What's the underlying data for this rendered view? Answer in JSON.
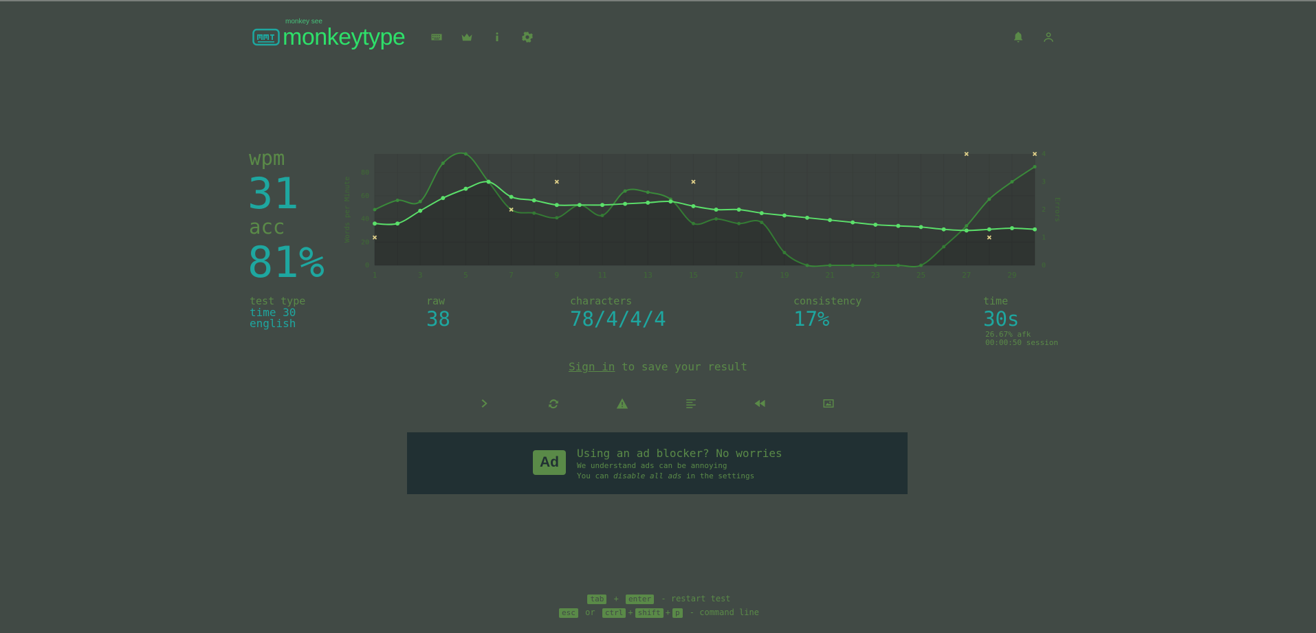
{
  "logo": {
    "sub": "monkey see",
    "title": "monkeytype"
  },
  "nav": {
    "icons": [
      "keyboard-icon",
      "crown-icon",
      "info-icon",
      "gear-icon"
    ],
    "right_icons": [
      "bell-icon",
      "user-icon"
    ]
  },
  "result": {
    "wpm_label": "wpm",
    "wpm_value": "31",
    "acc_label": "acc",
    "acc_value": "81%",
    "test_type_label": "test type",
    "test_type_line1": "time 30",
    "test_type_line2": "english",
    "raw_label": "raw",
    "raw_value": "38",
    "characters_label": "characters",
    "characters_value": "78/4/4/4",
    "consistency_label": "consistency",
    "consistency_value": "17%",
    "time_label": "time",
    "time_value": "30s",
    "afk": "26.67% afk",
    "session": "00:00:50 session"
  },
  "chart_data": {
    "type": "line",
    "ylabel": "Words per Minute",
    "ylabel_right": "Errors",
    "x": [
      1,
      2,
      3,
      4,
      5,
      6,
      7,
      8,
      9,
      10,
      11,
      12,
      13,
      14,
      15,
      16,
      17,
      18,
      19,
      20,
      21,
      22,
      23,
      24,
      25,
      26,
      27,
      28,
      29,
      30
    ],
    "xticks": [
      1,
      3,
      5,
      7,
      9,
      11,
      13,
      15,
      17,
      19,
      21,
      23,
      25,
      27,
      29
    ],
    "yticks": [
      0,
      20,
      40,
      60,
      80
    ],
    "ylim": [
      0,
      96
    ],
    "y2lim": [
      0,
      4
    ],
    "y2ticks": [
      0,
      1,
      2,
      3,
      4
    ],
    "series": [
      {
        "name": "wpm",
        "color": "#5be06a",
        "values": [
          36,
          36,
          47,
          58,
          66,
          72,
          59,
          56,
          52,
          52,
          52,
          53,
          54,
          55,
          51,
          48,
          48,
          45,
          43,
          41,
          39,
          37,
          35,
          34,
          33,
          31,
          30,
          31,
          32,
          31
        ]
      },
      {
        "name": "raw",
        "color": "#3a8a3a",
        "values": [
          48,
          56,
          55,
          88,
          96,
          72,
          48,
          45,
          41,
          52,
          43,
          64,
          63,
          57,
          36,
          40,
          36,
          37,
          11,
          0,
          0,
          0,
          0,
          0,
          0,
          16,
          34,
          57,
          72,
          85
        ]
      }
    ],
    "errors": [
      {
        "x": 1,
        "count": 1
      },
      {
        "x": 7,
        "count": 2
      },
      {
        "x": 9,
        "count": 3
      },
      {
        "x": 15,
        "count": 3
      },
      {
        "x": 27,
        "count": 4
      },
      {
        "x": 28,
        "count": 1
      },
      {
        "x": 30,
        "count": 4
      }
    ]
  },
  "signin": {
    "link": "Sign in",
    "rest": " to save your result"
  },
  "actions": [
    "next-test",
    "restart",
    "report",
    "words-history",
    "replay",
    "screenshot"
  ],
  "ad": {
    "badge": "Ad",
    "title": "Using an ad blocker? No worries",
    "line1": "We understand ads can be annoying",
    "line2_pre": "You can ",
    "line2_em": "disable all ads",
    "line2_post": " in the settings"
  },
  "footer": {
    "k_tab": "tab",
    "plus": "+",
    "k_enter": "enter",
    "restart": "- restart test",
    "k_esc": "esc",
    "or": "or",
    "k_ctrl": "ctrl",
    "k_shift": "shift",
    "k_p": "p",
    "command": "- command line"
  }
}
